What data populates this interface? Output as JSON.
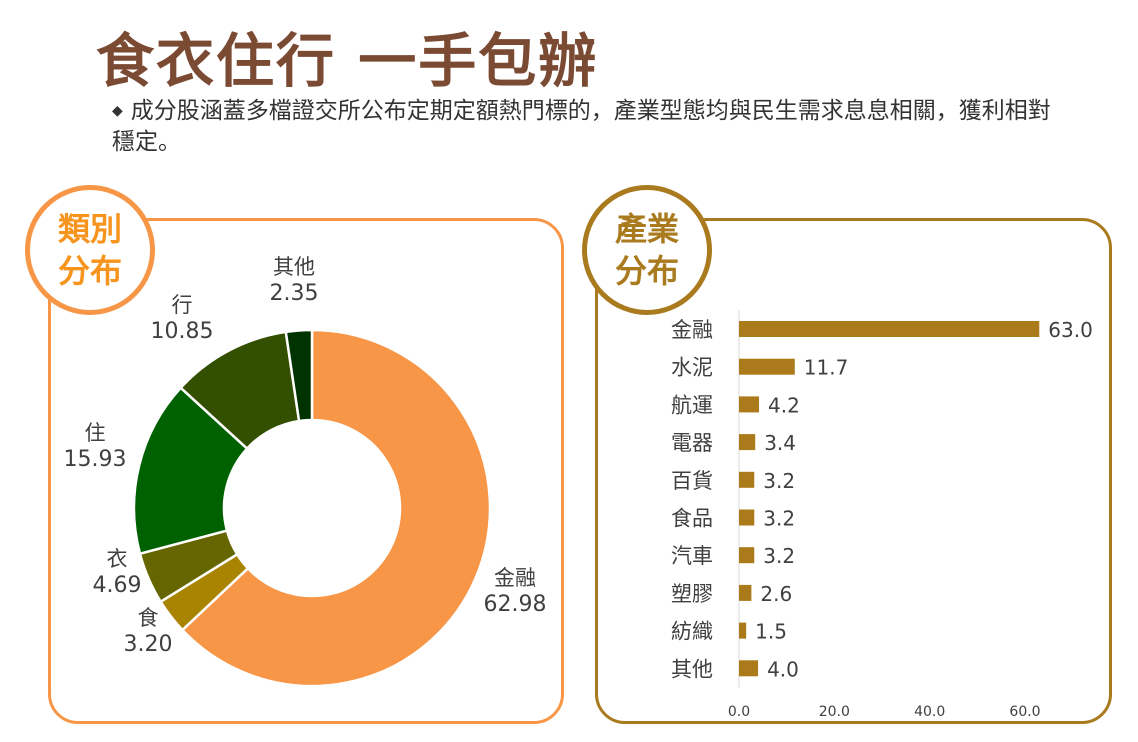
{
  "header": {
    "title": "食衣住行 一手包辦",
    "bullet_symbol": "◆",
    "bullet_text": "成分股涵蓋多檔證交所公布定期定額熱門標的，產業型態均與民生需求息息相關，獲利相對穩定。"
  },
  "left_badge": {
    "line1": "類別",
    "line2": "分布"
  },
  "right_badge": {
    "line1": "產業",
    "line2": "分布"
  },
  "chart_data": [
    {
      "type": "pie",
      "subtype": "donut",
      "title": "類別分布",
      "categories": [
        "金融",
        "食",
        "衣",
        "住",
        "行",
        "其他"
      ],
      "values": [
        62.98,
        3.2,
        4.69,
        15.93,
        10.85,
        2.35
      ],
      "labels": [
        "62.98",
        "3.20",
        "4.69",
        "15.93",
        "10.85",
        "2.35"
      ],
      "colors": [
        "#f79646",
        "#a88400",
        "#666600",
        "#006100",
        "#334f00",
        "#003300"
      ],
      "start": "top",
      "direction": "clockwise"
    },
    {
      "type": "bar",
      "orientation": "horizontal",
      "title": "產業分布",
      "categories": [
        "金融",
        "水泥",
        "航運",
        "電器",
        "百貨",
        "食品",
        "汽車",
        "塑膠",
        "紡織",
        "其他"
      ],
      "values": [
        63.0,
        11.7,
        4.2,
        3.4,
        3.2,
        3.2,
        3.2,
        2.6,
        1.5,
        4.0
      ],
      "labels": [
        "63.0",
        "11.7",
        "4.2",
        "3.4",
        "3.2",
        "3.2",
        "3.2",
        "2.6",
        "1.5",
        "4.0"
      ],
      "xlim": [
        0,
        70
      ],
      "xticks": [
        "0.0",
        "20.0",
        "40.0",
        "60.0"
      ],
      "tick_values": [
        0,
        20,
        40,
        60
      ],
      "color": "#ab7a1a"
    }
  ]
}
